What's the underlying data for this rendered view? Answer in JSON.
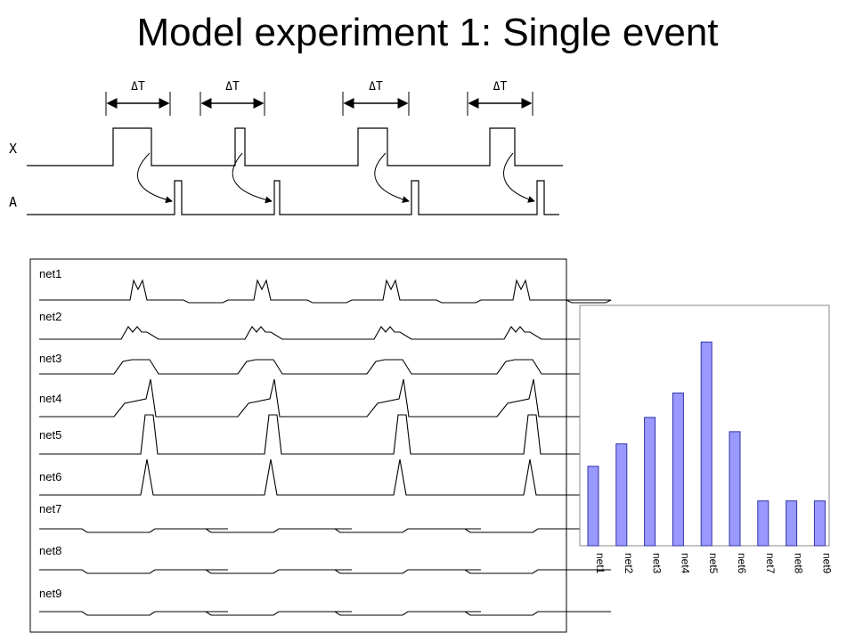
{
  "slide": {
    "title": "Model experiment 1: Single event"
  },
  "timing_diagram": {
    "interval_label": "ΔT",
    "signals": [
      "X",
      "A"
    ]
  },
  "traces": {
    "labels": [
      "net1",
      "net2",
      "net3",
      "net4",
      "net5",
      "net6",
      "net7",
      "net8",
      "net9"
    ]
  },
  "colors": {
    "bar_fill": "#9999ff",
    "bar_stroke": "#3333aa",
    "trace": "#000000"
  },
  "chart_data": {
    "type": "bar",
    "categories": [
      "net1",
      "net2",
      "net3",
      "net4",
      "net5",
      "net6",
      "net7",
      "net8",
      "net9"
    ],
    "values": [
      0.39,
      0.5,
      0.63,
      0.75,
      1.0,
      0.56,
      0.22,
      0.22,
      0.22
    ],
    "title": "",
    "xlabel": "",
    "ylabel": "",
    "ylim": [
      0,
      1.18
    ],
    "grid": false,
    "legend": "none"
  }
}
